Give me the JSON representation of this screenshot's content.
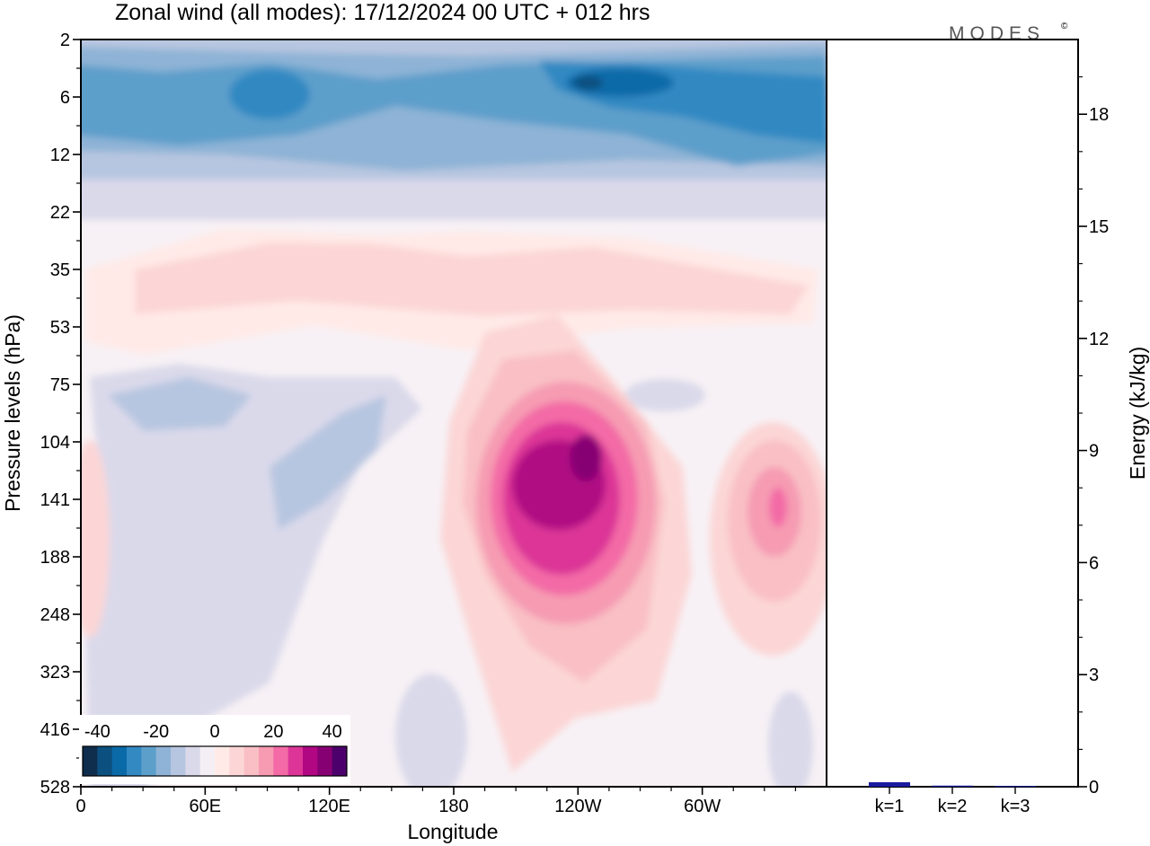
{
  "title": "Zonal wind (all modes):  17/12/2024  00 UTC  + 012 hrs",
  "logo": "MODES",
  "logo_mark": "©",
  "chart_data": [
    {
      "type": "heatmap",
      "xlabel": "Longitude",
      "ylabel": "Pressure levels (hPa)",
      "x_ticks": [
        "0",
        "60E",
        "120E",
        "180",
        "120W",
        "60W"
      ],
      "y_ticks": [
        "2",
        "6",
        "12",
        "22",
        "35",
        "53",
        "75",
        "104",
        "141",
        "188",
        "248",
        "323",
        "416",
        "528"
      ],
      "colorbar": {
        "labels": [
          "-40",
          "-20",
          "0",
          "20",
          "40"
        ],
        "colors": [
          "#0f2d4c",
          "#0c507f",
          "#0a6aa8",
          "#3389c2",
          "#5d9fcb",
          "#8eb3d6",
          "#b7c6e0",
          "#dad9ea",
          "#f3eff5",
          "#ffeae7",
          "#fcd6d6",
          "#f9bfc5",
          "#f69bb2",
          "#f36aa6",
          "#dc3597",
          "#b10783",
          "#870073",
          "#4c006b"
        ]
      },
      "features": [
        {
          "name": "westerly jet max",
          "lon": "120W",
          "level": 141,
          "value": 32
        },
        {
          "name": "secondary jet max",
          "lon": "30W",
          "level": 141,
          "value": 18
        },
        {
          "name": "stratospheric easterlies",
          "lon": "120W",
          "level": 6,
          "value": -36
        }
      ]
    },
    {
      "type": "bar",
      "categories": [
        "k=1",
        "k=2",
        "k=3"
      ],
      "values": [
        0.12,
        0.03,
        0.02
      ],
      "ylabel": "Energy (kJ/kg)",
      "ylim": [
        0,
        20
      ],
      "y_ticks": [
        0,
        3,
        6,
        9,
        12,
        15,
        18
      ],
      "bar_color": "#1a1aa0"
    }
  ]
}
